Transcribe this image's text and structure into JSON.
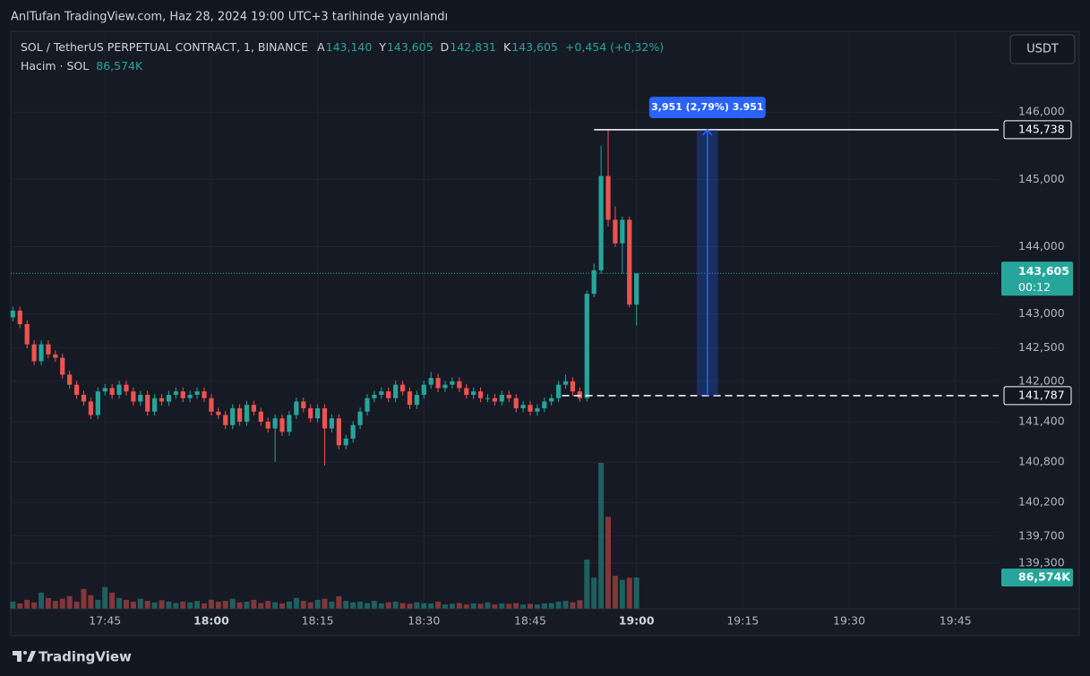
{
  "header": "AnlTufan TradingView.com, Haz 28, 2024 19:00 UTC+3 tarihinde yayınlandı",
  "currency_button": "USDT",
  "footer_brand": "TradingView",
  "chart_data": {
    "type": "candlestick",
    "title": "SOL / TetherUS PERPETUAL CONTRACT, 1, BINANCE",
    "legend_values": [
      {
        "key": "A",
        "label": "143,140"
      },
      {
        "key": "Y",
        "label": "143,605"
      },
      {
        "key": "D",
        "label": "142,831"
      },
      {
        "key": "K",
        "label": "143,605"
      }
    ],
    "change_label": "+0,454 (+0,32%)",
    "open": [
      142.95,
      143.05,
      142.85,
      142.55,
      142.3,
      142.55,
      142.4,
      142.35,
      142.1,
      141.95,
      141.8,
      141.7,
      141.5,
      141.85,
      141.9,
      141.8,
      141.95,
      141.85,
      141.7,
      141.8,
      141.55,
      141.75,
      141.7,
      141.8,
      141.85,
      141.75,
      141.8,
      141.85,
      141.75,
      141.55,
      141.5,
      141.35,
      141.6,
      141.4,
      141.65,
      141.55,
      141.4,
      141.3,
      141.45,
      141.25,
      141.5,
      141.7,
      141.6,
      141.45,
      141.6,
      141.3,
      141.45,
      141.05,
      141.15,
      141.35,
      141.55,
      141.75,
      141.8,
      141.85,
      141.75,
      141.95,
      141.85,
      141.65,
      141.8,
      141.95,
      142.05,
      141.9,
      141.95,
      142.0,
      141.9,
      141.8,
      141.85,
      141.75,
      141.75,
      141.7,
      141.8,
      141.75,
      141.6,
      141.65,
      141.55,
      141.6,
      141.7,
      141.75,
      141.95,
      142.0,
      141.85,
      141.75,
      143.3,
      143.65,
      145.05,
      144.4,
      144.05,
      144.4,
      143.14
    ],
    "high": [
      143.11,
      143.11,
      142.91,
      142.61,
      142.61,
      142.61,
      142.46,
      142.41,
      142.16,
      142.01,
      141.86,
      141.76,
      141.91,
      141.96,
      141.96,
      142.01,
      142.01,
      141.91,
      141.86,
      141.86,
      141.81,
      141.81,
      141.86,
      141.91,
      141.91,
      141.86,
      141.91,
      141.91,
      141.81,
      141.61,
      141.56,
      141.66,
      141.66,
      141.71,
      141.71,
      141.61,
      141.46,
      141.51,
      141.51,
      141.56,
      141.76,
      141.76,
      141.66,
      141.66,
      141.66,
      141.51,
      141.51,
      141.21,
      141.41,
      141.61,
      141.81,
      141.86,
      141.91,
      141.91,
      142.01,
      142.01,
      141.91,
      141.86,
      142.01,
      142.14,
      142.11,
      142.01,
      142.06,
      142.06,
      141.96,
      141.91,
      141.91,
      141.81,
      141.81,
      141.86,
      141.86,
      141.81,
      141.71,
      141.71,
      141.66,
      141.76,
      141.81,
      142.01,
      142.1,
      142.06,
      141.91,
      143.35,
      143.75,
      145.5,
      145.738,
      144.6,
      144.45,
      144.45,
      143.605
    ],
    "low": [
      142.89,
      142.79,
      142.49,
      142.24,
      142.24,
      142.34,
      142.29,
      142.04,
      141.89,
      141.74,
      141.64,
      141.44,
      141.44,
      141.79,
      141.74,
      141.74,
      141.79,
      141.64,
      141.64,
      141.49,
      141.49,
      141.64,
      141.64,
      141.74,
      141.69,
      141.69,
      141.74,
      141.69,
      141.49,
      141.44,
      141.29,
      141.29,
      141.34,
      141.34,
      141.49,
      141.34,
      141.24,
      140.8,
      141.19,
      141.19,
      141.44,
      141.54,
      141.39,
      141.39,
      140.75,
      141.24,
      140.99,
      140.99,
      141.09,
      141.29,
      141.49,
      141.69,
      141.74,
      141.69,
      141.69,
      141.79,
      141.59,
      141.59,
      141.74,
      141.89,
      141.84,
      141.84,
      141.89,
      141.84,
      141.74,
      141.74,
      141.69,
      141.69,
      141.64,
      141.64,
      141.69,
      141.54,
      141.54,
      141.49,
      141.49,
      141.54,
      141.64,
      141.69,
      141.89,
      141.79,
      141.7,
      141.7,
      143.25,
      143.6,
      144.3,
      144.0,
      143.6,
      143.1,
      142.831
    ],
    "close": [
      143.05,
      142.85,
      142.55,
      142.3,
      142.55,
      142.4,
      142.35,
      142.1,
      141.95,
      141.8,
      141.7,
      141.5,
      141.85,
      141.9,
      141.8,
      141.95,
      141.85,
      141.7,
      141.8,
      141.55,
      141.75,
      141.7,
      141.8,
      141.85,
      141.75,
      141.8,
      141.85,
      141.75,
      141.55,
      141.5,
      141.35,
      141.6,
      141.4,
      141.65,
      141.55,
      141.4,
      141.3,
      141.45,
      141.25,
      141.5,
      141.7,
      141.6,
      141.45,
      141.6,
      141.3,
      141.45,
      141.05,
      141.15,
      141.35,
      141.55,
      141.75,
      141.8,
      141.85,
      141.75,
      141.95,
      141.85,
      141.65,
      141.8,
      141.95,
      142.05,
      141.9,
      141.95,
      142.0,
      141.9,
      141.8,
      141.85,
      141.75,
      141.75,
      141.7,
      141.8,
      141.75,
      141.6,
      141.65,
      141.55,
      141.6,
      141.7,
      141.75,
      141.95,
      142.0,
      141.85,
      141.75,
      143.3,
      143.65,
      145.05,
      144.4,
      144.05,
      144.4,
      143.14,
      143.605
    ],
    "up_color": "#26a69a",
    "down_color": "#ef5350",
    "xlim": [
      -0.3,
      139.1
    ],
    "xticks": [
      {
        "value": 13,
        "label": "17:45"
      },
      {
        "value": 28,
        "label": "18:00"
      },
      {
        "value": 43,
        "label": "18:15"
      },
      {
        "value": 58,
        "label": "18:30"
      },
      {
        "value": 73,
        "label": "18:45"
      },
      {
        "value": 88,
        "label": "19:00"
      },
      {
        "value": 103,
        "label": "19:15"
      },
      {
        "value": 118,
        "label": "19:30"
      },
      {
        "value": 133,
        "label": "19:45"
      }
    ],
    "ylim": [
      138.62,
      147.2
    ],
    "yticks": [
      {
        "value": 146,
        "label": "146,000"
      },
      {
        "value": 145,
        "label": "145,000"
      },
      {
        "value": 144,
        "label": "144,000"
      },
      {
        "value": 143,
        "label": "143,000"
      },
      {
        "value": 142.5,
        "label": "142,500"
      },
      {
        "value": 142,
        "label": "142,000"
      },
      {
        "value": 141.4,
        "label": "141,400"
      },
      {
        "value": 140.8,
        "label": "140,800"
      },
      {
        "value": 140.2,
        "label": "140,200"
      },
      {
        "value": 139.7,
        "label": "139,700"
      },
      {
        "value": 139.3,
        "label": "139,300"
      }
    ],
    "grid": true,
    "volume": {
      "name": "Hacim · SOL",
      "values": [
        20,
        15,
        25,
        18,
        45,
        30,
        22,
        28,
        35,
        20,
        55,
        38,
        25,
        60,
        45,
        30,
        25,
        20,
        28,
        22,
        18,
        24,
        20,
        16,
        20,
        18,
        22,
        15,
        25,
        20,
        22,
        28,
        18,
        20,
        25,
        16,
        22,
        18,
        15,
        20,
        30,
        22,
        18,
        25,
        28,
        20,
        35,
        22,
        18,
        20,
        16,
        22,
        15,
        18,
        20,
        16,
        14,
        18,
        16,
        15,
        20,
        12,
        14,
        16,
        12,
        15,
        14,
        18,
        12,
        15,
        14,
        16,
        12,
        14,
        12,
        15,
        16,
        20,
        22,
        18,
        24,
        136,
        86,
        403,
        254,
        91,
        80,
        86,
        86.574
      ],
      "last_label": "86,574K",
      "ylim": [
        0,
        640
      ]
    },
    "last_price": {
      "value": 143.605,
      "label": "143,605",
      "countdown": "00:12"
    },
    "measure": {
      "text": "3,951 (2,79%) 3.951",
      "from": {
        "value": 141.787,
        "label": "141,787"
      },
      "to": {
        "value": 145.738,
        "label": "145,738"
      },
      "x_range": [
        96.5,
        99.5
      ]
    }
  }
}
